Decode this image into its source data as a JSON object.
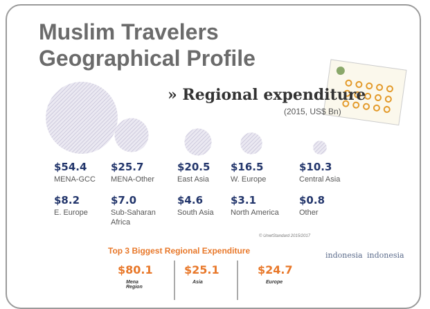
{
  "header": {
    "title_lines": [
      "Muslim Travelers",
      "Geographical Profile"
    ]
  },
  "section": {
    "title": "Regional expenditure",
    "unit": "(2015, US$ Bn)"
  },
  "regions": [
    {
      "name": "MENA-GCC",
      "label": "$54.4",
      "value": 54.4
    },
    {
      "name": "MENA-Other",
      "label": "$25.7",
      "value": 25.7
    },
    {
      "name": "East Asia",
      "label": "$20.5",
      "value": 20.5
    },
    {
      "name": "W. Europe",
      "label": "$16.5",
      "value": 16.5
    },
    {
      "name": "Central Asia",
      "label": "$10.3",
      "value": 10.3
    },
    {
      "name": "E. Europe",
      "label": "$8.2"
    },
    {
      "name": "Sub-Saharan Africa",
      "label": "$7.0"
    },
    {
      "name": "South Asia",
      "label": "$4.6"
    },
    {
      "name": "North America",
      "label": "$3.1"
    },
    {
      "name": "Other",
      "label": "$0.8"
    }
  ],
  "source": "© UnwtStandard 2015/2017",
  "top3": {
    "title": "Top 3 Biggest Regional Expenditure",
    "items": [
      {
        "label": "$80.1",
        "name": "Mena Region"
      },
      {
        "label": "$25.1",
        "name": "Asia"
      },
      {
        "label": "$24.7",
        "name": "Europe"
      }
    ]
  },
  "logos": [
    "indonesia",
    "indonesia"
  ]
}
